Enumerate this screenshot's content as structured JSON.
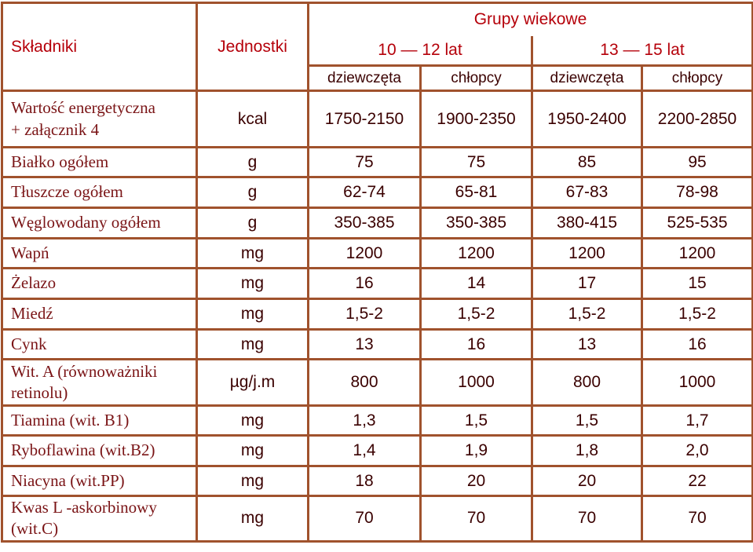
{
  "header": {
    "col_ingredients": "Składniki",
    "col_units": "Jednostki",
    "group_title": "Grupy wiekowe",
    "age_groups": [
      "10 — 12 lat",
      "13 — 15 lat"
    ],
    "genders": [
      "dziewczęta",
      "chłopcy",
      "dziewczęta",
      "chłopcy"
    ]
  },
  "colors": {
    "border": "#a0522d",
    "header_text": "#b5000a",
    "name_text": "#7a1416",
    "value_text": "#3a0000"
  },
  "rows": [
    {
      "name": "Wartość energetyczna\n+ załącznik 4",
      "unit": "kcal",
      "values": [
        "1750-2150",
        "1900-2350",
        "1950-2400",
        "2200-2850"
      ]
    },
    {
      "name": "Białko ogółem",
      "unit": "g",
      "values": [
        "75",
        "75",
        "85",
        "95"
      ]
    },
    {
      "name": "Tłuszcze ogółem",
      "unit": "g",
      "values": [
        "62-74",
        "65-81",
        "67-83",
        "78-98"
      ]
    },
    {
      "name": "Węglowodany ogółem",
      "unit": "g",
      "values": [
        "350-385",
        "350-385",
        "380-415",
        "525-535"
      ]
    },
    {
      "name": "Wapń",
      "unit": "mg",
      "values": [
        "1200",
        "1200",
        "1200",
        "1200"
      ]
    },
    {
      "name": "Żelazo",
      "unit": "mg",
      "values": [
        "16",
        "14",
        "17",
        "15"
      ]
    },
    {
      "name": "Miedź",
      "unit": "mg",
      "values": [
        "1,5-2",
        "1,5-2",
        "1,5-2",
        "1,5-2"
      ]
    },
    {
      "name": "Cynk",
      "unit": "mg",
      "values": [
        "13",
        "16",
        "13",
        "16"
      ]
    },
    {
      "name": "Wit. A (równoważniki\nretinolu)",
      "unit": "µg/j.m",
      "values": [
        "800",
        "1000",
        "800",
        "1000"
      ]
    },
    {
      "name": "Tiamina (wit. B1)",
      "unit": "mg",
      "values": [
        "1,3",
        "1,5",
        "1,5",
        "1,7"
      ]
    },
    {
      "name": "Ryboflawina (wit.B2)",
      "unit": "mg",
      "values": [
        "1,4",
        "1,9",
        "1,8",
        "2,0"
      ]
    },
    {
      "name": "Niacyna (wit.PP)",
      "unit": "mg",
      "values": [
        "18",
        "20",
        "20",
        "22"
      ]
    },
    {
      "name": "Kwas L -askorbinowy\n(wit.C)",
      "unit": "mg",
      "values": [
        "70",
        "70",
        "70",
        "70"
      ]
    }
  ]
}
